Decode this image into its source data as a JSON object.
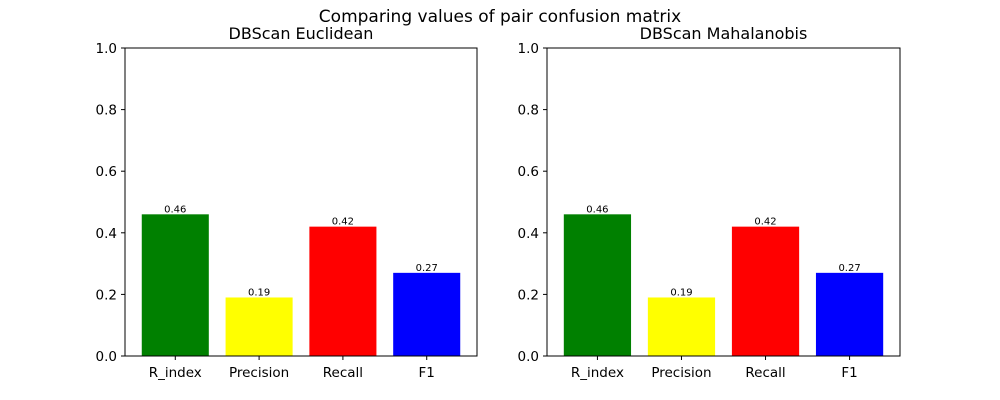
{
  "figure": {
    "suptitle": "Comparing values of pair confusion matrix"
  },
  "chart_data": [
    {
      "type": "bar",
      "title": "DBScan Euclidean",
      "xlabel": "",
      "ylabel": "",
      "categories": [
        "R_index",
        "Precision",
        "Recall",
        "F1"
      ],
      "values": [
        0.46,
        0.19,
        0.42,
        0.27
      ],
      "data_labels": [
        "0.46",
        "0.19",
        "0.42",
        "0.27"
      ],
      "colors": [
        "#008000",
        "#ffff00",
        "#ff0000",
        "#0000ff"
      ],
      "ylim": [
        0,
        1.0
      ],
      "yticks": [
        "0.0",
        "0.2",
        "0.4",
        "0.6",
        "0.8",
        "1.0"
      ],
      "grid": false
    },
    {
      "type": "bar",
      "title": "DBScan Mahalanobis",
      "xlabel": "",
      "ylabel": "",
      "categories": [
        "R_index",
        "Precision",
        "Recall",
        "F1"
      ],
      "values": [
        0.46,
        0.19,
        0.42,
        0.27
      ],
      "data_labels": [
        "0.46",
        "0.19",
        "0.42",
        "0.27"
      ],
      "colors": [
        "#008000",
        "#ffff00",
        "#ff0000",
        "#0000ff"
      ],
      "ylim": [
        0,
        1.0
      ],
      "yticks": [
        "0.0",
        "0.2",
        "0.4",
        "0.6",
        "0.8",
        "1.0"
      ],
      "grid": false
    }
  ]
}
